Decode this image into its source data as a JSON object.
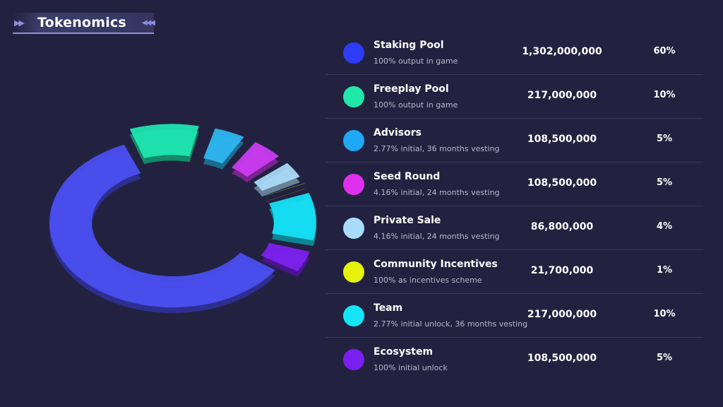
{
  "header": {
    "title": "Tokenomics",
    "left_icon": "double-chevron-right-icon",
    "right_icon": "triple-chevron-left-icon"
  },
  "chart_data": {
    "type": "pie",
    "categories": [
      "Staking Pool",
      "Freeplay Pool",
      "Advisors",
      "Seed Round",
      "Private Sale",
      "Community Incentives",
      "Team",
      "Ecosystem"
    ],
    "values": [
      60,
      10,
      5,
      5,
      4,
      1,
      10,
      5
    ],
    "colors": [
      "#4b4ff0",
      "#1fe5b0",
      "#2fb6f0",
      "#c93cf0",
      "#aad8f7",
      "#e4f01a",
      "#16e0f5",
      "#7b22ee"
    ]
  },
  "table": {
    "rows": [
      {
        "name": "Staking Pool",
        "desc": "100% output in game",
        "amount": "1,302,000,000",
        "pct": "60%",
        "color": "#2d3cf5"
      },
      {
        "name": "Freeplay Pool",
        "desc": "100% output in game",
        "amount": "217,000,000",
        "pct": "10%",
        "color": "#1fe8a8"
      },
      {
        "name": "Advisors",
        "desc": "2.77% initial, 36 months vesting",
        "amount": "108,500,000",
        "pct": "5%",
        "color": "#1ea8f5"
      },
      {
        "name": "Seed Round",
        "desc": "4.16% initial, 24 months vesting",
        "amount": "108,500,000",
        "pct": "5%",
        "color": "#e12ff0"
      },
      {
        "name": "Private Sale",
        "desc": "4.16% initial, 24 months vesting",
        "amount": "86,800,000",
        "pct": "4%",
        "color": "#a9dcfa"
      },
      {
        "name": "Community Incentives",
        "desc": "100% as incentives scheme",
        "amount": "21,700,000",
        "pct": "1%",
        "color": "#e6f20a"
      },
      {
        "name": "Team",
        "desc": "2.77% initial unlock, 36 months vesting",
        "amount": "217,000,000",
        "pct": "10%",
        "color": "#14e6f7"
      },
      {
        "name": "Ecosystem",
        "desc": "100% initial unlock",
        "amount": "108,500,000",
        "pct": "5%",
        "color": "#7a1ff0"
      }
    ]
  }
}
